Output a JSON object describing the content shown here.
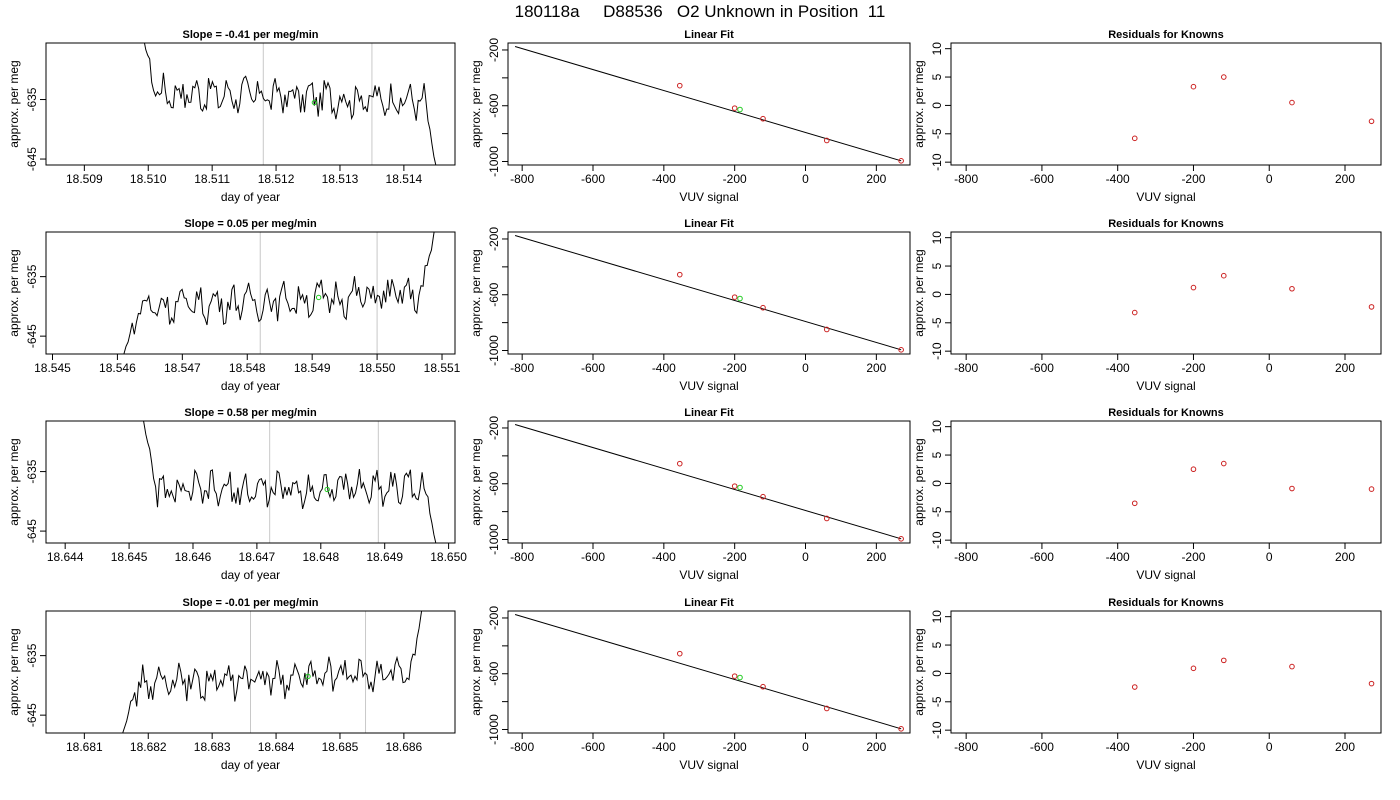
{
  "page": {
    "title": "180118a     D88536   O2 Unknown in Position  11"
  },
  "chart_data": [
    {
      "type": "line",
      "panel": "timeseries",
      "row": 0,
      "title": "Slope =  -0.41  per meg/min",
      "xlabel": "day of year",
      "ylabel": "approx. per meg",
      "xlim": [
        18.5084,
        18.5148
      ],
      "ylim": [
        -646,
        -625.5
      ],
      "xticks": [
        18.509,
        18.51,
        18.511,
        18.512,
        18.513,
        18.514
      ],
      "xtick_labels": [
        "18.509",
        "18.510",
        "18.511",
        "18.512",
        "18.513",
        "18.514"
      ],
      "yticks": [
        -635,
        -645
      ],
      "ytick_labels": [
        "-635",
        "-645"
      ],
      "vlines": [
        18.5118,
        18.5135
      ],
      "trace_start": 18.5099,
      "trace_end": 18.5145,
      "level": -634.5,
      "start_value": -624,
      "end_value": -646,
      "trend": -0.4,
      "marker": {
        "x": 18.5126,
        "y": -635.5
      },
      "grid": false,
      "legend": "none"
    },
    {
      "type": "scatter",
      "panel": "linear_fit",
      "row": 0,
      "title": "Linear Fit",
      "xlabel": "VUV signal",
      "ylabel": "approx. per meg",
      "xlim": [
        -840,
        295
      ],
      "ylim": [
        -1025,
        -150
      ],
      "xticks": [
        -800,
        -600,
        -400,
        -200,
        0,
        200
      ],
      "xtick_labels": [
        "-800",
        "-600",
        "-400",
        "-200",
        "0",
        "200"
      ],
      "yticks": [
        -200,
        -400,
        -600,
        -800,
        -1000
      ],
      "ytick_labels": [
        "-200",
        "",
        "-600",
        "",
        "-1000"
      ],
      "line": {
        "x": [
          -820,
          270
        ],
        "y": [
          -175,
          -995
        ]
      },
      "points": {
        "x": [
          -355,
          -200,
          -120,
          60,
          270
        ],
        "y": [
          -456,
          -617,
          -693,
          -849,
          -995
        ]
      },
      "unknown": {
        "x": -185,
        "y": -627
      },
      "grid": false,
      "legend": "none"
    },
    {
      "type": "scatter",
      "panel": "residuals",
      "row": 0,
      "title": "Residuals for Knowns",
      "xlabel": "VUV signal",
      "ylabel": "approx. per meg",
      "xlim": [
        -840,
        295
      ],
      "ylim": [
        -10.5,
        11
      ],
      "xticks": [
        -800,
        -600,
        -400,
        -200,
        0,
        200
      ],
      "xtick_labels": [
        "-800",
        "-600",
        "-400",
        "-200",
        "0",
        "200"
      ],
      "yticks": [
        10,
        5,
        0,
        -5,
        -10
      ],
      "ytick_labels": [
        "10",
        "5",
        "0",
        "-5",
        "-10"
      ],
      "points": {
        "x": [
          -355,
          -200,
          -120,
          60,
          270
        ],
        "y": [
          -5.8,
          3.3,
          5.0,
          0.5,
          -2.8
        ]
      },
      "grid": false,
      "legend": "none"
    },
    {
      "type": "line",
      "panel": "timeseries",
      "row": 1,
      "title": "Slope =  0.05  per meg/min",
      "xlabel": "day of year",
      "ylabel": "approx. per meg",
      "xlim": [
        18.5449,
        18.5512
      ],
      "ylim": [
        -648,
        -627.5
      ],
      "xticks": [
        18.545,
        18.546,
        18.547,
        18.548,
        18.549,
        18.55,
        18.551
      ],
      "xtick_labels": [
        "18.545",
        "18.546",
        "18.547",
        "18.548",
        "18.549",
        "18.550",
        "18.551"
      ],
      "yticks": [
        -635,
        -645
      ],
      "ytick_labels": [
        "-635",
        "-645"
      ],
      "vlines": [
        18.5482,
        18.55
      ],
      "trace_start": 18.5461,
      "trace_end": 18.5509,
      "level": -639,
      "start_value": -648,
      "end_value": -626,
      "trend": 0.6,
      "marker": {
        "x": 18.5491,
        "y": -638.5
      },
      "grid": false,
      "legend": "none"
    },
    {
      "type": "scatter",
      "panel": "linear_fit",
      "row": 1,
      "title": "Linear Fit",
      "xlabel": "VUV signal",
      "ylabel": "approx. per meg",
      "xlim": [
        -840,
        295
      ],
      "ylim": [
        -1025,
        -150
      ],
      "xticks": [
        -800,
        -600,
        -400,
        -200,
        0,
        200
      ],
      "xtick_labels": [
        "-800",
        "-600",
        "-400",
        "-200",
        "0",
        "200"
      ],
      "yticks": [
        -200,
        -400,
        -600,
        -800,
        -1000
      ],
      "ytick_labels": [
        "-200",
        "",
        "-600",
        "",
        "-1000"
      ],
      "line": {
        "x": [
          -820,
          270
        ],
        "y": [
          -175,
          -995
        ]
      },
      "points": {
        "x": [
          -355,
          -200,
          -120,
          60,
          270
        ],
        "y": [
          -456,
          -617,
          -693,
          -849,
          -995
        ]
      },
      "unknown": {
        "x": -185,
        "y": -627
      },
      "grid": false,
      "legend": "none"
    },
    {
      "type": "scatter",
      "panel": "residuals",
      "row": 1,
      "title": "Residuals for Knowns",
      "xlabel": "VUV signal",
      "ylabel": "approx. per meg",
      "xlim": [
        -840,
        295
      ],
      "ylim": [
        -10.5,
        11
      ],
      "xticks": [
        -800,
        -600,
        -400,
        -200,
        0,
        200
      ],
      "xtick_labels": [
        "-800",
        "-600",
        "-400",
        "-200",
        "0",
        "200"
      ],
      "yticks": [
        10,
        5,
        0,
        -5,
        -10
      ],
      "ytick_labels": [
        "10",
        "5",
        "0",
        "-5",
        "-10"
      ],
      "points": {
        "x": [
          -355,
          -200,
          -120,
          60,
          270
        ],
        "y": [
          -3.2,
          1.2,
          3.3,
          1.0,
          -2.2
        ]
      },
      "grid": false,
      "legend": "none"
    },
    {
      "type": "line",
      "panel": "timeseries",
      "row": 2,
      "title": "Slope =  0.58  per meg/min",
      "xlabel": "day of year",
      "ylabel": "approx. per meg",
      "xlim": [
        18.6437,
        18.6501
      ],
      "ylim": [
        -647,
        -626.5
      ],
      "xticks": [
        18.644,
        18.645,
        18.646,
        18.647,
        18.648,
        18.649,
        18.65
      ],
      "xtick_labels": [
        "18.644",
        "18.645",
        "18.646",
        "18.647",
        "18.648",
        "18.649",
        "18.650"
      ],
      "yticks": [
        -635,
        -645
      ],
      "ytick_labels": [
        "-635",
        "-645"
      ],
      "vlines": [
        18.6472,
        18.6489
      ],
      "trace_start": 18.6452,
      "trace_end": 18.6498,
      "level": -638,
      "start_value": -625,
      "end_value": -647,
      "trend": 0.3,
      "marker": {
        "x": 18.6481,
        "y": -638
      },
      "grid": false,
      "legend": "none"
    },
    {
      "type": "scatter",
      "panel": "linear_fit",
      "row": 2,
      "title": "Linear Fit",
      "xlabel": "VUV signal",
      "ylabel": "approx. per meg",
      "xlim": [
        -840,
        295
      ],
      "ylim": [
        -1025,
        -150
      ],
      "xticks": [
        -800,
        -600,
        -400,
        -200,
        0,
        200
      ],
      "xtick_labels": [
        "-800",
        "-600",
        "-400",
        "-200",
        "0",
        "200"
      ],
      "yticks": [
        -200,
        -400,
        -600,
        -800,
        -1000
      ],
      "ytick_labels": [
        "-200",
        "",
        "-600",
        "",
        "-1000"
      ],
      "line": {
        "x": [
          -820,
          270
        ],
        "y": [
          -175,
          -995
        ]
      },
      "points": {
        "x": [
          -355,
          -200,
          -120,
          60,
          270
        ],
        "y": [
          -456,
          -617,
          -693,
          -849,
          -995
        ]
      },
      "unknown": {
        "x": -185,
        "y": -627
      },
      "grid": false,
      "legend": "none"
    },
    {
      "type": "scatter",
      "panel": "residuals",
      "row": 2,
      "title": "Residuals for Knowns",
      "xlabel": "VUV signal",
      "ylabel": "approx. per meg",
      "xlim": [
        -840,
        295
      ],
      "ylim": [
        -10.5,
        11
      ],
      "xticks": [
        -800,
        -600,
        -400,
        -200,
        0,
        200
      ],
      "xtick_labels": [
        "-800",
        "-600",
        "-400",
        "-200",
        "0",
        "200"
      ],
      "yticks": [
        10,
        5,
        0,
        -5,
        -10
      ],
      "ytick_labels": [
        "10",
        "5",
        "0",
        "-5",
        "-10"
      ],
      "points": {
        "x": [
          -355,
          -200,
          -120,
          60,
          270
        ],
        "y": [
          -3.5,
          2.5,
          3.5,
          -0.9,
          -1.0
        ]
      },
      "grid": false,
      "legend": "none"
    },
    {
      "type": "line",
      "panel": "timeseries",
      "row": 3,
      "title": "Slope =  -0.01  per meg/min",
      "xlabel": "day of year",
      "ylabel": "approx. per meg",
      "xlim": [
        18.6804,
        18.6868
      ],
      "ylim": [
        -648,
        -627.5
      ],
      "xticks": [
        18.681,
        18.682,
        18.683,
        18.684,
        18.685,
        18.686
      ],
      "xtick_labels": [
        "18.681",
        "18.682",
        "18.683",
        "18.684",
        "18.685",
        "18.686"
      ],
      "yticks": [
        -635,
        -645
      ],
      "ytick_labels": [
        "-635",
        "-645"
      ],
      "vlines": [
        18.6836,
        18.6854
      ],
      "trace_start": 18.6816,
      "trace_end": 18.6863,
      "level": -639,
      "start_value": -648,
      "end_value": -626,
      "trend": 0.5,
      "marker": {
        "x": 18.6845,
        "y": -638.5
      },
      "grid": false,
      "legend": "none"
    },
    {
      "type": "scatter",
      "panel": "linear_fit",
      "row": 3,
      "title": "Linear Fit",
      "xlabel": "VUV signal",
      "ylabel": "approx. per meg",
      "xlim": [
        -840,
        295
      ],
      "ylim": [
        -1025,
        -150
      ],
      "xticks": [
        -800,
        -600,
        -400,
        -200,
        0,
        200
      ],
      "xtick_labels": [
        "-800",
        "-600",
        "-400",
        "-200",
        "0",
        "200"
      ],
      "yticks": [
        -200,
        -400,
        -600,
        -800,
        -1000
      ],
      "ytick_labels": [
        "-200",
        "",
        "-600",
        "",
        "-1000"
      ],
      "line": {
        "x": [
          -820,
          270
        ],
        "y": [
          -175,
          -995
        ]
      },
      "points": {
        "x": [
          -355,
          -200,
          -120,
          60,
          270
        ],
        "y": [
          -456,
          -617,
          -693,
          -849,
          -995
        ]
      },
      "unknown": {
        "x": -185,
        "y": -627
      },
      "grid": false,
      "legend": "none"
    },
    {
      "type": "scatter",
      "panel": "residuals",
      "row": 3,
      "title": "Residuals for Knowns",
      "xlabel": "VUV signal",
      "ylabel": "approx. per meg",
      "xlim": [
        -840,
        295
      ],
      "ylim": [
        -10.5,
        11
      ],
      "xticks": [
        -800,
        -600,
        -400,
        -200,
        0,
        200
      ],
      "xtick_labels": [
        "-800",
        "-600",
        "-400",
        "-200",
        "0",
        "200"
      ],
      "yticks": [
        10,
        5,
        0,
        -5,
        -10
      ],
      "ytick_labels": [
        "10",
        "5",
        "0",
        "-5",
        "-10"
      ],
      "points": {
        "x": [
          -355,
          -200,
          -120,
          60,
          270
        ],
        "y": [
          -2.4,
          0.9,
          2.3,
          1.2,
          -1.8
        ]
      },
      "grid": false,
      "legend": "none"
    }
  ],
  "colors": {
    "line": "#000000",
    "point": "#cc2222",
    "unknown": "#22cc22",
    "vline": "#c8c8c8"
  }
}
